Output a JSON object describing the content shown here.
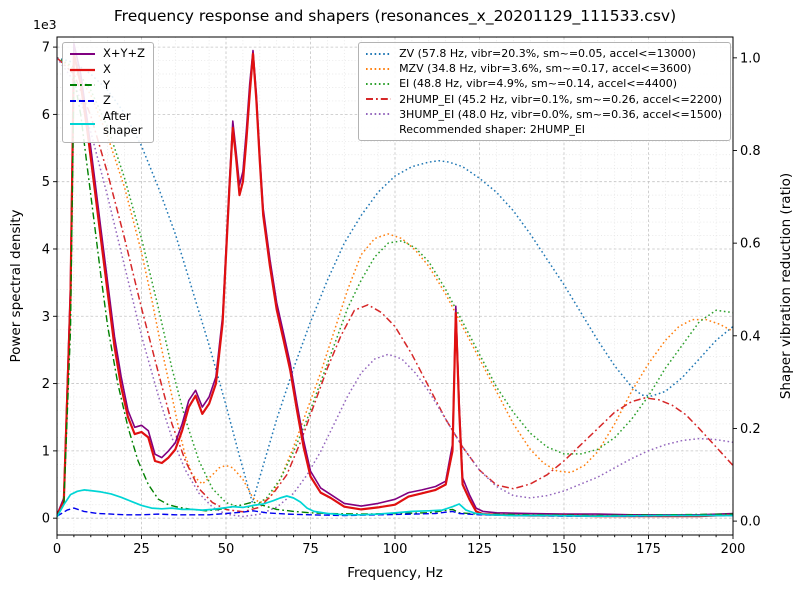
{
  "chart_data": {
    "type": "line",
    "title": "Frequency response and shapers (resonances_x_20201129_111533.csv)",
    "legend_note": "Recommended shaper: 2HUMP_EI",
    "axes": {
      "x": {
        "label": "Frequency, Hz",
        "range": [
          0,
          200
        ],
        "ticks": [
          0,
          25,
          50,
          75,
          100,
          125,
          150,
          175,
          200
        ],
        "minor_step": 5
      },
      "y_left": {
        "label": "Power spectral density",
        "offset_label": "1e3",
        "range": [
          -0.25,
          7.15
        ],
        "ticks": [
          0,
          1,
          2,
          3,
          4,
          5,
          6,
          7
        ],
        "minor_step": 0.2
      },
      "y_right": {
        "label": "Shaper vibration reduction (ratio)",
        "range": [
          -0.03,
          1.045
        ],
        "ticks": [
          0.0,
          0.2,
          0.4,
          0.6,
          0.8,
          1.0
        ]
      }
    },
    "grid": {
      "major_color": "#c4c4c4",
      "minor_color": "#e2e2e2"
    },
    "series": [
      {
        "name": "sum",
        "label": "X+Y+Z",
        "legend": "psd",
        "axis": "left",
        "color": "#800080",
        "style": "solid",
        "width": 1.6,
        "x": [
          0,
          2,
          4,
          5,
          7,
          9,
          11,
          13,
          15,
          17,
          19,
          21,
          23,
          25,
          27,
          29,
          31,
          33,
          35,
          37,
          39,
          41,
          43,
          45,
          47,
          49,
          51,
          52,
          53,
          54,
          55,
          56,
          57,
          58,
          59,
          60,
          61,
          63,
          65,
          67,
          69,
          71,
          73,
          75,
          78,
          81,
          85,
          90,
          95,
          100,
          104,
          108,
          112,
          115,
          117,
          118,
          119,
          120,
          122,
          124,
          126,
          130,
          140,
          150,
          160,
          170,
          180,
          190,
          200
        ],
        "y": [
          0.05,
          0.3,
          3.5,
          7.05,
          6.6,
          5.9,
          5.1,
          4.3,
          3.5,
          2.7,
          2.1,
          1.6,
          1.35,
          1.38,
          1.3,
          0.95,
          0.9,
          1.0,
          1.12,
          1.4,
          1.75,
          1.9,
          1.65,
          1.8,
          2.1,
          3.0,
          5.0,
          5.9,
          5.45,
          4.95,
          5.15,
          5.75,
          6.45,
          6.95,
          6.3,
          5.4,
          4.6,
          3.85,
          3.2,
          2.75,
          2.3,
          1.7,
          1.15,
          0.7,
          0.45,
          0.35,
          0.22,
          0.18,
          0.22,
          0.28,
          0.38,
          0.42,
          0.47,
          0.55,
          1.1,
          3.15,
          1.7,
          0.6,
          0.35,
          0.15,
          0.1,
          0.08,
          0.07,
          0.06,
          0.06,
          0.05,
          0.05,
          0.05,
          0.07
        ]
      },
      {
        "name": "x",
        "label": "X",
        "legend": "psd",
        "axis": "left",
        "color": "#e01010",
        "style": "solid",
        "width": 2.2,
        "x": [
          0,
          2,
          4,
          5,
          7,
          9,
          11,
          13,
          15,
          17,
          19,
          21,
          23,
          25,
          27,
          29,
          31,
          33,
          35,
          37,
          39,
          41,
          43,
          45,
          47,
          49,
          51,
          52,
          53,
          54,
          55,
          56,
          57,
          58,
          59,
          60,
          61,
          63,
          65,
          67,
          69,
          71,
          73,
          75,
          78,
          81,
          85,
          90,
          95,
          100,
          104,
          108,
          112,
          115,
          117,
          118,
          119,
          120,
          122,
          124,
          126,
          130,
          140,
          150,
          160,
          170,
          180,
          190,
          200
        ],
        "y": [
          0.04,
          0.25,
          3.3,
          6.9,
          6.45,
          5.75,
          4.95,
          4.15,
          3.35,
          2.55,
          1.95,
          1.5,
          1.25,
          1.28,
          1.2,
          0.85,
          0.82,
          0.9,
          1.02,
          1.3,
          1.65,
          1.82,
          1.55,
          1.7,
          2.0,
          2.9,
          4.9,
          5.8,
          5.35,
          4.8,
          5.0,
          5.6,
          6.3,
          6.9,
          6.2,
          5.3,
          4.5,
          3.75,
          3.1,
          2.65,
          2.2,
          1.6,
          1.05,
          0.62,
          0.38,
          0.3,
          0.17,
          0.13,
          0.16,
          0.2,
          0.32,
          0.37,
          0.42,
          0.5,
          1.0,
          3.05,
          1.6,
          0.5,
          0.28,
          0.1,
          0.06,
          0.05,
          0.04,
          0.04,
          0.03,
          0.03,
          0.03,
          0.03,
          0.05
        ]
      },
      {
        "name": "y",
        "label": "Y",
        "legend": "psd",
        "axis": "left",
        "color": "#008000",
        "style": "dashdot",
        "width": 1.4,
        "x": [
          0,
          2,
          4,
          5,
          7,
          9,
          11,
          13,
          15,
          18,
          21,
          24,
          27,
          30,
          33,
          36,
          40,
          44,
          48,
          52,
          55,
          58,
          61,
          65,
          70,
          75,
          80,
          90,
          100,
          110,
          117,
          119,
          125,
          140,
          160,
          180,
          200
        ],
        "y": [
          0.03,
          0.2,
          2.8,
          6.55,
          6.0,
          5.2,
          4.4,
          3.6,
          2.85,
          2.0,
          1.35,
          0.85,
          0.5,
          0.28,
          0.2,
          0.16,
          0.13,
          0.11,
          0.13,
          0.17,
          0.2,
          0.24,
          0.19,
          0.13,
          0.1,
          0.08,
          0.07,
          0.06,
          0.07,
          0.08,
          0.13,
          0.08,
          0.06,
          0.05,
          0.04,
          0.05,
          0.06
        ]
      },
      {
        "name": "z",
        "label": "Z",
        "legend": "psd",
        "axis": "left",
        "color": "#0000ee",
        "style": "dashed",
        "width": 1.4,
        "x": [
          0,
          3,
          5,
          8,
          12,
          16,
          20,
          25,
          30,
          35,
          40,
          45,
          50,
          55,
          58,
          62,
          68,
          75,
          85,
          95,
          105,
          112,
          117,
          119,
          125,
          135,
          150,
          170,
          190,
          200
        ],
        "y": [
          0.03,
          0.12,
          0.15,
          0.1,
          0.07,
          0.06,
          0.05,
          0.05,
          0.06,
          0.05,
          0.05,
          0.05,
          0.07,
          0.09,
          0.11,
          0.08,
          0.06,
          0.05,
          0.04,
          0.05,
          0.06,
          0.07,
          0.1,
          0.07,
          0.05,
          0.04,
          0.03,
          0.03,
          0.04,
          0.04
        ]
      },
      {
        "name": "after-shaper",
        "label": "After\nshaper",
        "legend": "psd",
        "axis": "left",
        "color": "#00d5d5",
        "style": "solid",
        "width": 1.7,
        "x": [
          0,
          2,
          4,
          6,
          8,
          10,
          13,
          16,
          19,
          22,
          25,
          28,
          31,
          34,
          37,
          40,
          43,
          46,
          49,
          52,
          55,
          58,
          61,
          64,
          66,
          68,
          70,
          72,
          74,
          76,
          80,
          85,
          90,
          95,
          100,
          105,
          110,
          114,
          117,
          119,
          121,
          124,
          128,
          135,
          145,
          160,
          180,
          200
        ],
        "y": [
          0.02,
          0.2,
          0.35,
          0.4,
          0.42,
          0.41,
          0.39,
          0.36,
          0.31,
          0.25,
          0.19,
          0.15,
          0.14,
          0.15,
          0.13,
          0.13,
          0.12,
          0.13,
          0.15,
          0.17,
          0.16,
          0.19,
          0.21,
          0.26,
          0.3,
          0.33,
          0.3,
          0.24,
          0.15,
          0.1,
          0.07,
          0.05,
          0.05,
          0.06,
          0.08,
          0.1,
          0.11,
          0.12,
          0.17,
          0.21,
          0.12,
          0.07,
          0.05,
          0.04,
          0.04,
          0.03,
          0.04,
          0.04
        ]
      },
      {
        "name": "ZV",
        "label": "ZV (57.8 Hz, vibr=20.3%, sm~=0.05, accel<=13000)",
        "legend": "shaper",
        "axis": "right",
        "color": "#1f77b4",
        "style": "dotted",
        "width": 1.5,
        "x": [
          0,
          5,
          10,
          15,
          20,
          25,
          30,
          35,
          40,
          45,
          50,
          54,
          57.8,
          61,
          65,
          70,
          75,
          80,
          85,
          90,
          95,
          100,
          105,
          110,
          113,
          116,
          120,
          125,
          130,
          135,
          140,
          145,
          150,
          155,
          160,
          165,
          170,
          173,
          176,
          180,
          185,
          190,
          195,
          200
        ],
        "y": [
          1.0,
          0.99,
          0.965,
          0.93,
          0.88,
          0.81,
          0.72,
          0.62,
          0.5,
          0.38,
          0.25,
          0.14,
          0.04,
          0.12,
          0.22,
          0.33,
          0.43,
          0.52,
          0.6,
          0.66,
          0.71,
          0.745,
          0.765,
          0.775,
          0.778,
          0.775,
          0.765,
          0.74,
          0.71,
          0.67,
          0.62,
          0.565,
          0.51,
          0.45,
          0.39,
          0.335,
          0.29,
          0.272,
          0.27,
          0.28,
          0.31,
          0.35,
          0.39,
          0.42
        ]
      },
      {
        "name": "MZV",
        "label": "MZV (34.8 Hz, vibr=3.6%, sm~=0.17, accel<=3600)",
        "legend": "shaper",
        "axis": "right",
        "color": "#ff7f0e",
        "style": "dotted",
        "width": 1.5,
        "x": [
          0,
          5,
          10,
          15,
          20,
          25,
          28,
          31,
          34,
          36,
          38,
          40,
          43,
          46,
          48,
          50,
          52,
          55,
          58,
          60,
          63,
          66,
          70,
          74,
          78,
          82,
          86,
          90,
          94,
          98,
          102,
          106,
          110,
          115,
          120,
          125,
          130,
          135,
          140,
          144,
          148,
          152,
          156,
          160,
          165,
          170,
          175,
          180,
          184,
          188,
          192,
          196,
          200
        ],
        "y": [
          1.0,
          0.975,
          0.92,
          0.83,
          0.72,
          0.58,
          0.48,
          0.37,
          0.27,
          0.2,
          0.14,
          0.1,
          0.08,
          0.1,
          0.115,
          0.12,
          0.115,
          0.09,
          0.05,
          0.04,
          0.05,
          0.09,
          0.16,
          0.24,
          0.32,
          0.41,
          0.5,
          0.575,
          0.61,
          0.62,
          0.61,
          0.585,
          0.55,
          0.49,
          0.42,
          0.35,
          0.28,
          0.21,
          0.155,
          0.125,
          0.108,
          0.105,
          0.12,
          0.15,
          0.21,
          0.28,
          0.34,
          0.39,
          0.42,
          0.435,
          0.435,
          0.425,
          0.41
        ]
      },
      {
        "name": "EI",
        "label": "EI (48.8 Hz, vibr=4.9%, sm~=0.14, accel<=4400)",
        "legend": "shaper",
        "axis": "right",
        "color": "#2ca02c",
        "style": "dotted",
        "width": 1.5,
        "x": [
          0,
          5,
          10,
          15,
          20,
          25,
          30,
          34,
          38,
          42,
          46,
          50,
          54,
          58,
          62,
          66,
          70,
          74,
          78,
          82,
          86,
          90,
          94,
          98,
          102,
          106,
          110,
          115,
          120,
          125,
          130,
          135,
          140,
          145,
          150,
          155,
          160,
          165,
          170,
          175,
          180,
          185,
          190,
          195,
          200
        ],
        "y": [
          1.0,
          0.98,
          0.93,
          0.85,
          0.74,
          0.61,
          0.46,
          0.33,
          0.22,
          0.13,
          0.07,
          0.04,
          0.03,
          0.03,
          0.05,
          0.09,
          0.15,
          0.22,
          0.3,
          0.38,
          0.46,
          0.52,
          0.57,
          0.6,
          0.605,
          0.59,
          0.56,
          0.5,
          0.43,
          0.36,
          0.29,
          0.235,
          0.19,
          0.16,
          0.145,
          0.145,
          0.155,
          0.18,
          0.22,
          0.27,
          0.33,
          0.38,
          0.43,
          0.455,
          0.45
        ]
      },
      {
        "name": "2HUMP_EI",
        "label": "2HUMP_EI (45.2 Hz, vibr=0.1%, sm~=0.26, accel<=2200)",
        "legend": "shaper",
        "axis": "right",
        "color": "#d62728",
        "style": "dashdot",
        "width": 1.5,
        "x": [
          0,
          5,
          10,
          15,
          20,
          25,
          30,
          34,
          38,
          42,
          46,
          50,
          55,
          60,
          64,
          68,
          72,
          76,
          80,
          84,
          88,
          92,
          96,
          100,
          105,
          110,
          115,
          120,
          125,
          130,
          135,
          140,
          145,
          150,
          155,
          160,
          165,
          170,
          174,
          178,
          182,
          186,
          190,
          195,
          200
        ],
        "y": [
          1.0,
          0.965,
          0.875,
          0.75,
          0.61,
          0.46,
          0.32,
          0.21,
          0.13,
          0.07,
          0.04,
          0.025,
          0.02,
          0.03,
          0.06,
          0.1,
          0.17,
          0.25,
          0.33,
          0.4,
          0.455,
          0.467,
          0.45,
          0.42,
          0.36,
          0.29,
          0.22,
          0.16,
          0.11,
          0.078,
          0.07,
          0.08,
          0.1,
          0.13,
          0.165,
          0.2,
          0.235,
          0.258,
          0.266,
          0.262,
          0.25,
          0.23,
          0.2,
          0.16,
          0.12
        ]
      },
      {
        "name": "3HUMP_EI",
        "label": "3HUMP_EI (48.0 Hz, vibr=0.0%, sm~=0.36, accel<=1500)",
        "legend": "shaper",
        "axis": "right",
        "color": "#9467bd",
        "style": "dotted",
        "width": 1.5,
        "x": [
          0,
          5,
          10,
          15,
          20,
          25,
          30,
          34,
          38,
          42,
          46,
          50,
          55,
          60,
          65,
          70,
          74,
          78,
          82,
          86,
          90,
          94,
          98,
          102,
          106,
          110,
          115,
          120,
          125,
          130,
          135,
          140,
          145,
          150,
          155,
          160,
          165,
          170,
          175,
          180,
          185,
          190,
          195,
          200
        ],
        "y": [
          1.0,
          0.95,
          0.84,
          0.7,
          0.55,
          0.4,
          0.27,
          0.18,
          0.11,
          0.06,
          0.03,
          0.015,
          0.01,
          0.015,
          0.03,
          0.06,
          0.1,
          0.15,
          0.21,
          0.27,
          0.32,
          0.35,
          0.36,
          0.35,
          0.32,
          0.28,
          0.22,
          0.16,
          0.11,
          0.075,
          0.055,
          0.05,
          0.055,
          0.065,
          0.08,
          0.095,
          0.115,
          0.135,
          0.152,
          0.165,
          0.174,
          0.178,
          0.176,
          0.17
        ]
      }
    ]
  }
}
